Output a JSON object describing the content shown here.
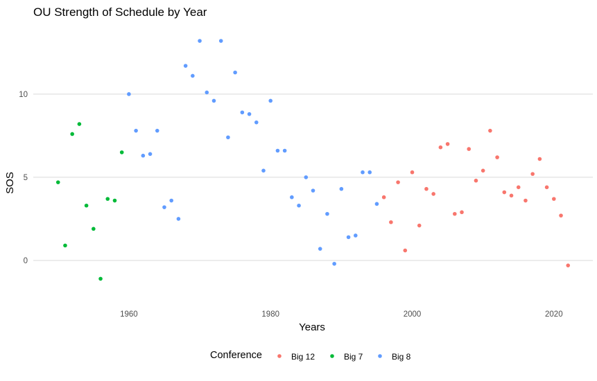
{
  "chart_data": {
    "type": "scatter",
    "title": "OU Strength of Schedule by Year",
    "xlabel": "Years",
    "ylabel": "SOS",
    "xlim": [
      1946.5,
      2025.5
    ],
    "ylim": [
      -1.5,
      14.2
    ],
    "x_ticks": [
      1960,
      1980,
      2000,
      2020
    ],
    "y_ticks": [
      0,
      5,
      10
    ],
    "grid": "horizontal major lines",
    "legend": {
      "title": "Conference",
      "placement": "bottom",
      "entries": [
        {
          "name": "Big 12",
          "color": "#F8766D"
        },
        {
          "name": "Big 7",
          "color": "#00BA38"
        },
        {
          "name": "Big 8",
          "color": "#619CFF"
        }
      ]
    },
    "series": [
      {
        "name": "Big 7",
        "color": "#00BA38",
        "points": [
          {
            "x": 1950,
            "y": 4.7
          },
          {
            "x": 1951,
            "y": 0.9
          },
          {
            "x": 1952,
            "y": 7.6
          },
          {
            "x": 1953,
            "y": 8.2
          },
          {
            "x": 1954,
            "y": 3.3
          },
          {
            "x": 1955,
            "y": 1.9
          },
          {
            "x": 1956,
            "y": -1.1
          },
          {
            "x": 1957,
            "y": 3.7
          },
          {
            "x": 1958,
            "y": 3.6
          },
          {
            "x": 1959,
            "y": 6.5
          }
        ]
      },
      {
        "name": "Big 8",
        "color": "#619CFF",
        "points": [
          {
            "x": 1960,
            "y": 10.0
          },
          {
            "x": 1961,
            "y": 7.8
          },
          {
            "x": 1962,
            "y": 6.3
          },
          {
            "x": 1963,
            "y": 6.4
          },
          {
            "x": 1964,
            "y": 7.8
          },
          {
            "x": 1965,
            "y": 3.2
          },
          {
            "x": 1966,
            "y": 3.6
          },
          {
            "x": 1967,
            "y": 2.5
          },
          {
            "x": 1968,
            "y": 11.7
          },
          {
            "x": 1969,
            "y": 11.1
          },
          {
            "x": 1970,
            "y": 13.2
          },
          {
            "x": 1971,
            "y": 10.1
          },
          {
            "x": 1972,
            "y": 9.6
          },
          {
            "x": 1973,
            "y": 13.2
          },
          {
            "x": 1974,
            "y": 7.4
          },
          {
            "x": 1975,
            "y": 11.3
          },
          {
            "x": 1976,
            "y": 8.9
          },
          {
            "x": 1977,
            "y": 8.8
          },
          {
            "x": 1978,
            "y": 8.3
          },
          {
            "x": 1979,
            "y": 5.4
          },
          {
            "x": 1980,
            "y": 9.6
          },
          {
            "x": 1981,
            "y": 6.6
          },
          {
            "x": 1982,
            "y": 6.6
          },
          {
            "x": 1983,
            "y": 3.8
          },
          {
            "x": 1984,
            "y": 3.3
          },
          {
            "x": 1985,
            "y": 5.0
          },
          {
            "x": 1986,
            "y": 4.2
          },
          {
            "x": 1987,
            "y": 0.7
          },
          {
            "x": 1988,
            "y": 2.8
          },
          {
            "x": 1989,
            "y": -0.2
          },
          {
            "x": 1990,
            "y": 4.3
          },
          {
            "x": 1991,
            "y": 1.4
          },
          {
            "x": 1992,
            "y": 1.5
          },
          {
            "x": 1993,
            "y": 5.3
          },
          {
            "x": 1994,
            "y": 5.3
          },
          {
            "x": 1995,
            "y": 3.4
          }
        ]
      },
      {
        "name": "Big 12",
        "color": "#F8766D",
        "points": [
          {
            "x": 1996,
            "y": 3.8
          },
          {
            "x": 1997,
            "y": 2.3
          },
          {
            "x": 1998,
            "y": 4.7
          },
          {
            "x": 1999,
            "y": 0.6
          },
          {
            "x": 2000,
            "y": 5.3
          },
          {
            "x": 2001,
            "y": 2.1
          },
          {
            "x": 2002,
            "y": 4.3
          },
          {
            "x": 2003,
            "y": 4.0
          },
          {
            "x": 2004,
            "y": 6.8
          },
          {
            "x": 2005,
            "y": 7.0
          },
          {
            "x": 2006,
            "y": 2.8
          },
          {
            "x": 2007,
            "y": 2.9
          },
          {
            "x": 2008,
            "y": 6.7
          },
          {
            "x": 2009,
            "y": 4.8
          },
          {
            "x": 2010,
            "y": 5.4
          },
          {
            "x": 2011,
            "y": 7.8
          },
          {
            "x": 2012,
            "y": 6.2
          },
          {
            "x": 2013,
            "y": 4.1
          },
          {
            "x": 2014,
            "y": 3.9
          },
          {
            "x": 2015,
            "y": 4.4
          },
          {
            "x": 2016,
            "y": 3.6
          },
          {
            "x": 2017,
            "y": 5.2
          },
          {
            "x": 2018,
            "y": 6.1
          },
          {
            "x": 2019,
            "y": 4.4
          },
          {
            "x": 2020,
            "y": 3.7
          },
          {
            "x": 2021,
            "y": 2.7
          },
          {
            "x": 2022,
            "y": -0.3
          }
        ]
      }
    ]
  }
}
